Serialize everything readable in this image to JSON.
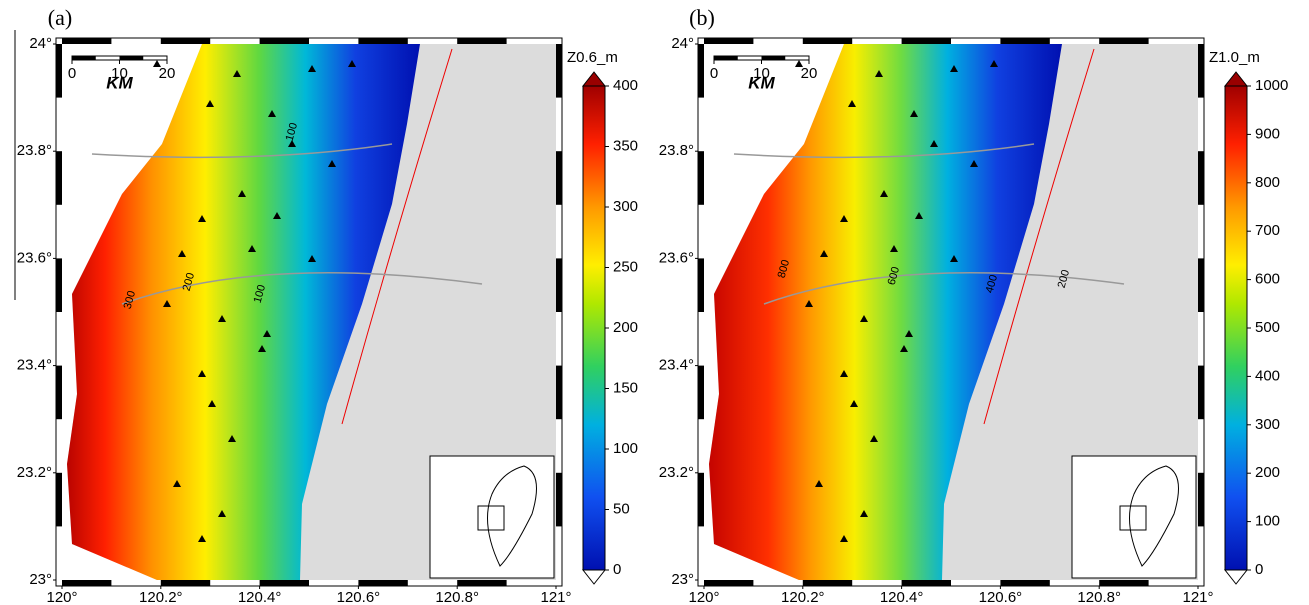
{
  "panels": [
    {
      "label": "(a)",
      "colorbar": {
        "title": "Z0.6_m",
        "range": [
          0,
          400
        ],
        "ticks": [
          0,
          50,
          100,
          150,
          200,
          250,
          300,
          350,
          400
        ]
      },
      "contour_labels": [
        "100",
        "200",
        "300",
        "100"
      ]
    },
    {
      "label": "(b)",
      "colorbar": {
        "title": "Z1.0_m",
        "range": [
          0,
          1000
        ],
        "ticks": [
          0,
          100,
          200,
          300,
          400,
          500,
          600,
          700,
          800,
          900,
          1000
        ]
      },
      "contour_labels": [
        "800",
        "600",
        "400",
        "200"
      ]
    }
  ],
  "map_axes": {
    "lon_range": [
      120,
      121
    ],
    "lat_range": [
      23,
      24
    ],
    "lon_ticks": [
      {
        "value": 120,
        "label": "120°"
      },
      {
        "value": 120.2,
        "label": "120.2°"
      },
      {
        "value": 120.4,
        "label": "120.4°"
      },
      {
        "value": 120.6,
        "label": "120.6°"
      },
      {
        "value": 120.8,
        "label": "120.8°"
      },
      {
        "value": 121,
        "label": "121°"
      }
    ],
    "lat_ticks": [
      {
        "value": 23,
        "label": "23°"
      },
      {
        "value": 23.2,
        "label": "23.2°"
      },
      {
        "value": 23.4,
        "label": "23.4°"
      },
      {
        "value": 23.6,
        "label": "23.6°"
      },
      {
        "value": 23.8,
        "label": "23.8°"
      },
      {
        "value": 24,
        "label": "24°"
      }
    ]
  },
  "scale_bar": {
    "title": "KM",
    "ticks": [
      0,
      10,
      20
    ]
  }
}
